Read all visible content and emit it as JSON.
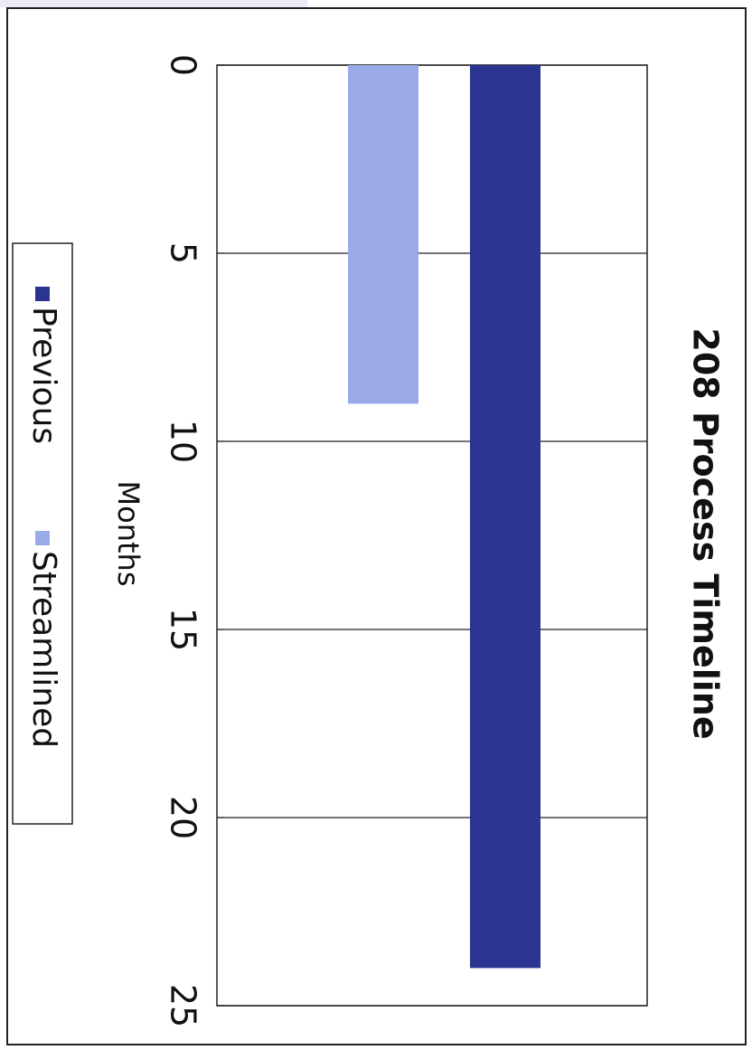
{
  "chart_data": {
    "type": "bar",
    "title": "208 Process Timeline",
    "ylabel": "Months",
    "categories": [
      null
    ],
    "series": [
      {
        "name": "Previous",
        "color": "#2b3491",
        "values": [
          24
        ]
      },
      {
        "name": "Streamlined",
        "color": "#9aaae8",
        "values": [
          9
        ]
      }
    ],
    "ylim": [
      0,
      25
    ],
    "yticks": [
      0,
      5,
      10,
      15,
      20,
      25
    ],
    "grid": true,
    "legend": "left"
  }
}
